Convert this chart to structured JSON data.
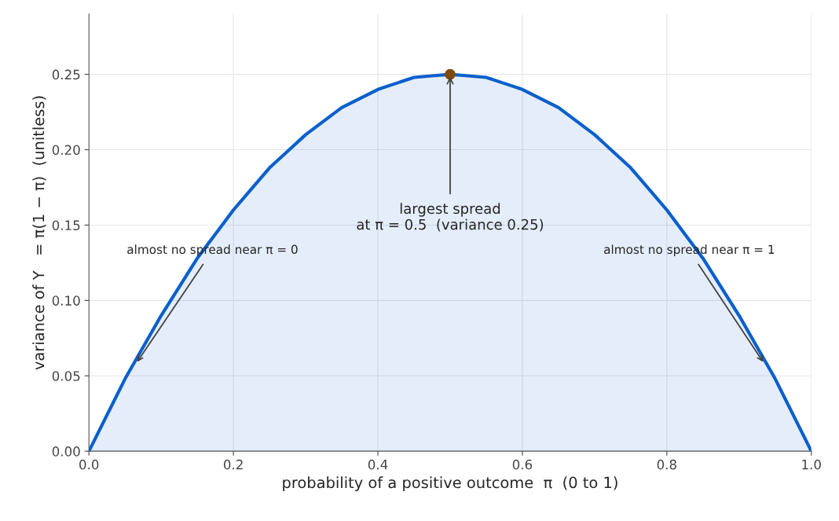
{
  "chart_data": {
    "type": "area",
    "xlabel": "probability of a positive outcome  π  (0 to 1)",
    "ylabel": "variance of Y   = π(1 − π)  (unitless)",
    "series": [
      {
        "color": "#0a5fcc",
        "x": [
          0,
          0.025,
          0.05,
          0.075,
          0.1,
          0.125,
          0.15,
          0.175,
          0.2,
          0.225,
          0.25,
          0.275,
          0.3,
          0.325,
          0.35,
          0.375,
          0.4,
          0.425,
          0.45,
          0.475,
          0.5,
          0.525,
          0.55,
          0.575,
          0.6,
          0.625,
          0.65,
          0.675,
          0.7,
          0.725,
          0.75,
          0.775,
          0.8,
          0.825,
          0.85,
          0.875,
          0.9,
          0.925,
          0.95,
          0.975,
          1
        ],
        "values": [
          0,
          0.024,
          0.048,
          0.069,
          0.09,
          0.109,
          0.128,
          0.144,
          0.16,
          0.174,
          0.188,
          0.199,
          0.21,
          0.219,
          0.228,
          0.234,
          0.24,
          0.244,
          0.248,
          0.249,
          0.25,
          0.249,
          0.248,
          0.244,
          0.24,
          0.234,
          0.228,
          0.219,
          0.21,
          0.199,
          0.188,
          0.174,
          0.16,
          0.144,
          0.128,
          0.109,
          0.09,
          0.069,
          0.048,
          0.024,
          0
        ]
      },
      {
        "type": "scatter",
        "marker": "circle",
        "color": "#7f4a0a",
        "x": [
          0.5
        ],
        "values": [
          0.25
        ]
      }
    ],
    "annotations": [
      {
        "text": "almost no spread near π = 0",
        "x": 0.065,
        "y": 0.058
      },
      {
        "text": "largest spread\nat π = 0.5  (variance 0.25)",
        "x": 0.5,
        "y": 0.25
      },
      {
        "text": "almost no spread near π = 1",
        "x": 0.935,
        "y": 0.058
      }
    ],
    "xlim": [
      0,
      1
    ],
    "ylim": [
      0,
      0.29
    ],
    "xticks": [
      {
        "value": 0,
        "label": "0.0"
      },
      0.2,
      0.4,
      0.6,
      0.8,
      {
        "value": 1,
        "label": "1.0"
      }
    ],
    "yticks": [
      {
        "value": 0,
        "label": "0.00"
      },
      {
        "value": 0.05,
        "label": "0.05"
      },
      {
        "value": 0.1,
        "label": "0.10"
      },
      {
        "value": 0.15,
        "label": "0.15"
      },
      {
        "value": 0.2,
        "label": "0.20"
      },
      {
        "value": 0.25,
        "label": "0.25"
      }
    ],
    "grid": true,
    "line_style": "solid"
  }
}
